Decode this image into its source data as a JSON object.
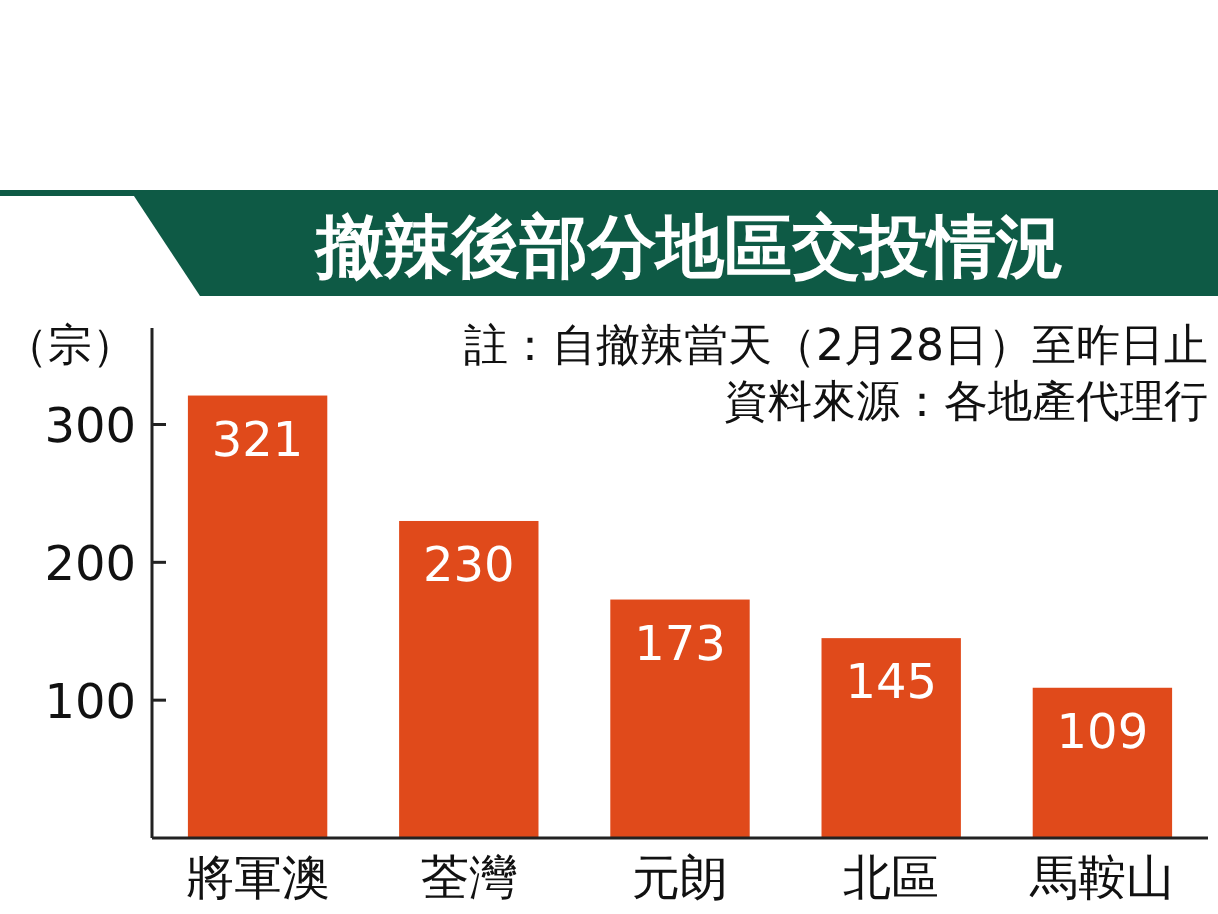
{
  "chart_data": {
    "type": "bar",
    "title": "撤辣後部分地區交投情況",
    "ylabel": "（宗）",
    "annotations": [
      "註：自撤辣當天（2月28日）至昨日止",
      "資料來源：各地產代理行"
    ],
    "categories": [
      "將軍澳",
      "荃灣",
      "元朗",
      "北區",
      "馬鞍山"
    ],
    "values": [
      321,
      230,
      173,
      145,
      109
    ],
    "color": "#e04a1b",
    "ylim": [
      0,
      370
    ],
    "yticks": [
      100,
      200,
      300
    ],
    "data_labels": true
  }
}
